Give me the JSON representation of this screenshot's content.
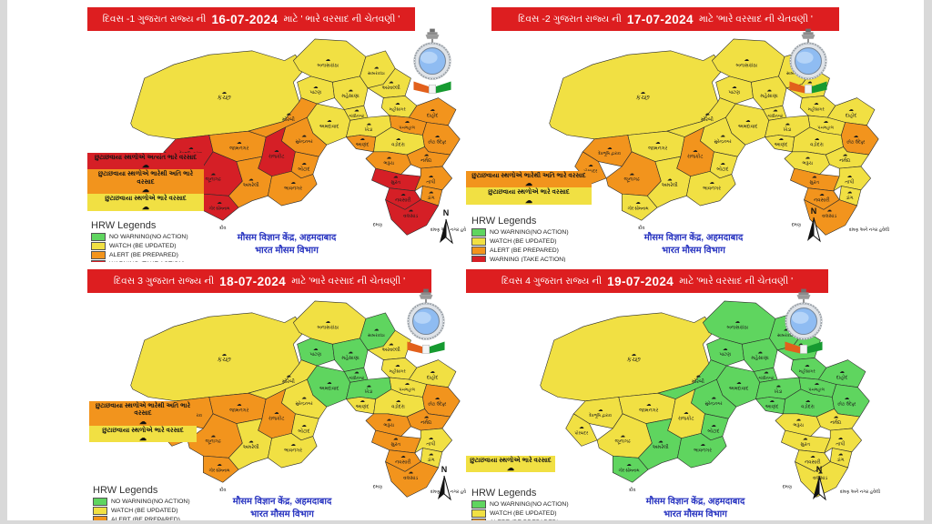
{
  "colors": {
    "banner_red": "#DD1E20",
    "no_warning": "#5FD55F",
    "watch": "#F1E043",
    "alert": "#F2941D",
    "warning": "#D51F26",
    "credit_blue": "#2733C0",
    "emblem_inner_blue": "#8FBCF2"
  },
  "legend": {
    "title": "HRW Legends",
    "items": [
      {
        "level": "no_warning",
        "label": "NO WARNING(NO ACTION)"
      },
      {
        "level": "watch",
        "label": "WATCH (BE UPDATED)"
      },
      {
        "level": "alert",
        "label": "ALERT (BE PREPARED)"
      },
      {
        "level": "warning",
        "label": "WARNING (TAKE ACTION)"
      }
    ]
  },
  "credit": {
    "line1": "मौसम विज्ञान केंद्र, अहमदाबाद",
    "line2": "भारत मौसम विभाग"
  },
  "north_label": "N",
  "map_notes": {
    "diu": "દીવ",
    "daman": "દમણ",
    "dnh": "દમણ અને નગર હવેલી"
  },
  "districts": {
    "kutch": {
      "label": "કચ્છ"
    },
    "banaskantha": {
      "label": "બનાસકાંઠા"
    },
    "patan": {
      "label": "પાટણ"
    },
    "mehsana": {
      "label": "મહેસાણા"
    },
    "sabarkantha": {
      "label": "સાબરકાંઠા"
    },
    "aravalli": {
      "label": "અરવલ્લી"
    },
    "mahisagar": {
      "label": "મહીસાગર"
    },
    "dahod": {
      "label": "દાહોદ"
    },
    "gandhinagar": {
      "label": "ગાંધીનગર"
    },
    "ahmedabad": {
      "label": "અમદાવાદ"
    },
    "kheda": {
      "label": "ખેડા"
    },
    "panchmahal": {
      "label": "પંચમહાલ"
    },
    "anand": {
      "label": "આણંદ"
    },
    "vadodara": {
      "label": "વડોદરા"
    },
    "chhotaudepur": {
      "label": "છોટા ઉદેપુર"
    },
    "narmada": {
      "label": "નર્મદા"
    },
    "bharuch": {
      "label": "ભરૂચ"
    },
    "surat": {
      "label": "સુરત"
    },
    "tapi": {
      "label": "તાપી"
    },
    "dang": {
      "label": "ડાંગ"
    },
    "navsari": {
      "label": "નવસારી"
    },
    "valsad": {
      "label": "વલસાડ"
    },
    "morbi": {
      "label": "મોરબી"
    },
    "surendranagar": {
      "label": "સુરેન્દ્રનગર"
    },
    "jamnagar": {
      "label": "જામનગર"
    },
    "dwarka": {
      "label": "દેવભૂમિ દ્વારકા"
    },
    "rajkot": {
      "label": "રાજકોટ"
    },
    "porbandar": {
      "label": "પોરબંદર"
    },
    "junagadh": {
      "label": "જૂનાગઢ"
    },
    "girsomnath": {
      "label": "ગીર સોમનાથ"
    },
    "amreli": {
      "label": "અમરેલી"
    },
    "botad": {
      "label": "બોટાદ"
    },
    "bhavnagar": {
      "label": "ભાવનગર"
    }
  },
  "panels": [
    {
      "prefix": "દિવસ -1 ગુજરાત રાજ્ય ની",
      "date": "16-07-2024",
      "suffix": "માટે ' ભારે વરસાદ ની ચેતવણી '",
      "warnings": [
        {
          "level": "warning",
          "text": "છુટાછવાયા સ્થળોએ અત્યંત ભારે વરસાદ"
        },
        {
          "level": "alert",
          "text": "છુટાછવાયા સ્થળોએ ભારેથી અતિ ભારે વરસાદ"
        },
        {
          "level": "watch",
          "text": "છુટાછવાયા સ્થળોએ ભારે વરસાદ"
        }
      ],
      "district_levels": {
        "kutch": "watch",
        "banaskantha": "watch",
        "patan": "watch",
        "mehsana": "watch",
        "sabarkantha": "watch",
        "aravalli": "watch",
        "mahisagar": "watch",
        "dahod": "alert",
        "gandhinagar": "watch",
        "ahmedabad": "watch",
        "kheda": "watch",
        "panchmahal": "alert",
        "anand": "alert",
        "vadodara": "watch",
        "chhotaudepur": "alert",
        "narmada": "alert",
        "bharuch": "alert",
        "surat": "warning",
        "tapi": "alert",
        "dang": "alert",
        "navsari": "warning",
        "valsad": "warning",
        "morbi": "alert",
        "surendranagar": "alert",
        "jamnagar": "alert",
        "dwarka": "warning",
        "rajkot": "warning",
        "porbandar": "warning",
        "junagadh": "warning",
        "girsomnath": "warning",
        "amreli": "alert",
        "botad": "alert",
        "bhavnagar": "alert"
      }
    },
    {
      "prefix": "દિવસ -2 ગુજરાત રાજ્ય ની",
      "date": "17-07-2024",
      "suffix": "માટે 'ભારે વરસાદ ની ચેતવણી '",
      "warnings": [
        {
          "level": "alert",
          "text": "છુટાછવાયા સ્થળોએ ભારેથી અતિ ભારે વરસાદ"
        },
        {
          "level": "watch",
          "text": "છુટાછવાયા સ્થળોએ ભારે વરસાદ"
        }
      ],
      "district_levels": {
        "kutch": "watch",
        "banaskantha": "watch",
        "patan": "watch",
        "mehsana": "watch",
        "sabarkantha": "watch",
        "aravalli": "watch",
        "mahisagar": "watch",
        "dahod": "watch",
        "gandhinagar": "watch",
        "ahmedabad": "watch",
        "kheda": "watch",
        "panchmahal": "watch",
        "anand": "watch",
        "vadodara": "watch",
        "chhotaudepur": "alert",
        "narmada": "watch",
        "bharuch": "watch",
        "surat": "alert",
        "tapi": "watch",
        "dang": "watch",
        "navsari": "alert",
        "valsad": "alert",
        "morbi": "watch",
        "surendranagar": "watch",
        "jamnagar": "watch",
        "dwarka": "alert",
        "rajkot": "alert",
        "porbandar": "alert",
        "junagadh": "alert",
        "girsomnath": "watch",
        "amreli": "watch",
        "botad": "watch",
        "bhavnagar": "watch"
      }
    },
    {
      "prefix": "દિવસ 3 ગુજરાત રાજ્ય ની",
      "date": "18-07-2024",
      "suffix": "માટે 'ભારે વરસાદ ની ચેતવણી '",
      "warnings": [
        {
          "level": "alert",
          "text": "છુટાછવાયા સ્થળોએ ભારેથી અતિ ભારે વરસાદ"
        },
        {
          "level": "watch",
          "text": "છુટાછવાયા સ્થળોએ ભારે વરસાદ"
        }
      ],
      "district_levels": {
        "kutch": "watch",
        "banaskantha": "watch",
        "patan": "no_warning",
        "mehsana": "no_warning",
        "sabarkantha": "no_warning",
        "aravalli": "watch",
        "mahisagar": "watch",
        "dahod": "watch",
        "gandhinagar": "no_warning",
        "ahmedabad": "no_warning",
        "kheda": "no_warning",
        "panchmahal": "watch",
        "anand": "watch",
        "vadodara": "watch",
        "chhotaudepur": "alert",
        "narmada": "alert",
        "bharuch": "alert",
        "surat": "alert",
        "tapi": "watch",
        "dang": "watch",
        "navsari": "alert",
        "valsad": "alert",
        "morbi": "watch",
        "surendranagar": "watch",
        "jamnagar": "alert",
        "dwarka": "alert",
        "rajkot": "alert",
        "porbandar": "alert",
        "junagadh": "alert",
        "girsomnath": "alert",
        "amreli": "watch",
        "botad": "watch",
        "bhavnagar": "watch"
      }
    },
    {
      "prefix": "દિવસ 4 ગુજરાત રાજ્ય ની",
      "date": "19-07-2024",
      "suffix": "માટે 'ભારે વરસાદ ની ચેતવણી '",
      "warnings": [
        {
          "level": "watch",
          "text": "છુટાછવાયા સ્થળોએ ભારે વરસાદ"
        }
      ],
      "district_levels": {
        "kutch": "watch",
        "banaskantha": "no_warning",
        "patan": "no_warning",
        "mehsana": "no_warning",
        "sabarkantha": "no_warning",
        "aravalli": "no_warning",
        "mahisagar": "no_warning",
        "dahod": "no_warning",
        "gandhinagar": "no_warning",
        "ahmedabad": "no_warning",
        "kheda": "no_warning",
        "panchmahal": "no_warning",
        "anand": "no_warning",
        "vadodara": "no_warning",
        "chhotaudepur": "no_warning",
        "narmada": "watch",
        "bharuch": "watch",
        "surat": "watch",
        "tapi": "watch",
        "dang": "watch",
        "navsari": "watch",
        "valsad": "watch",
        "morbi": "no_warning",
        "surendranagar": "no_warning",
        "jamnagar": "watch",
        "dwarka": "watch",
        "rajkot": "watch",
        "porbandar": "watch",
        "junagadh": "watch",
        "girsomnath": "no_warning",
        "amreli": "no_warning",
        "botad": "no_warning",
        "bhavnagar": "no_warning"
      }
    }
  ]
}
